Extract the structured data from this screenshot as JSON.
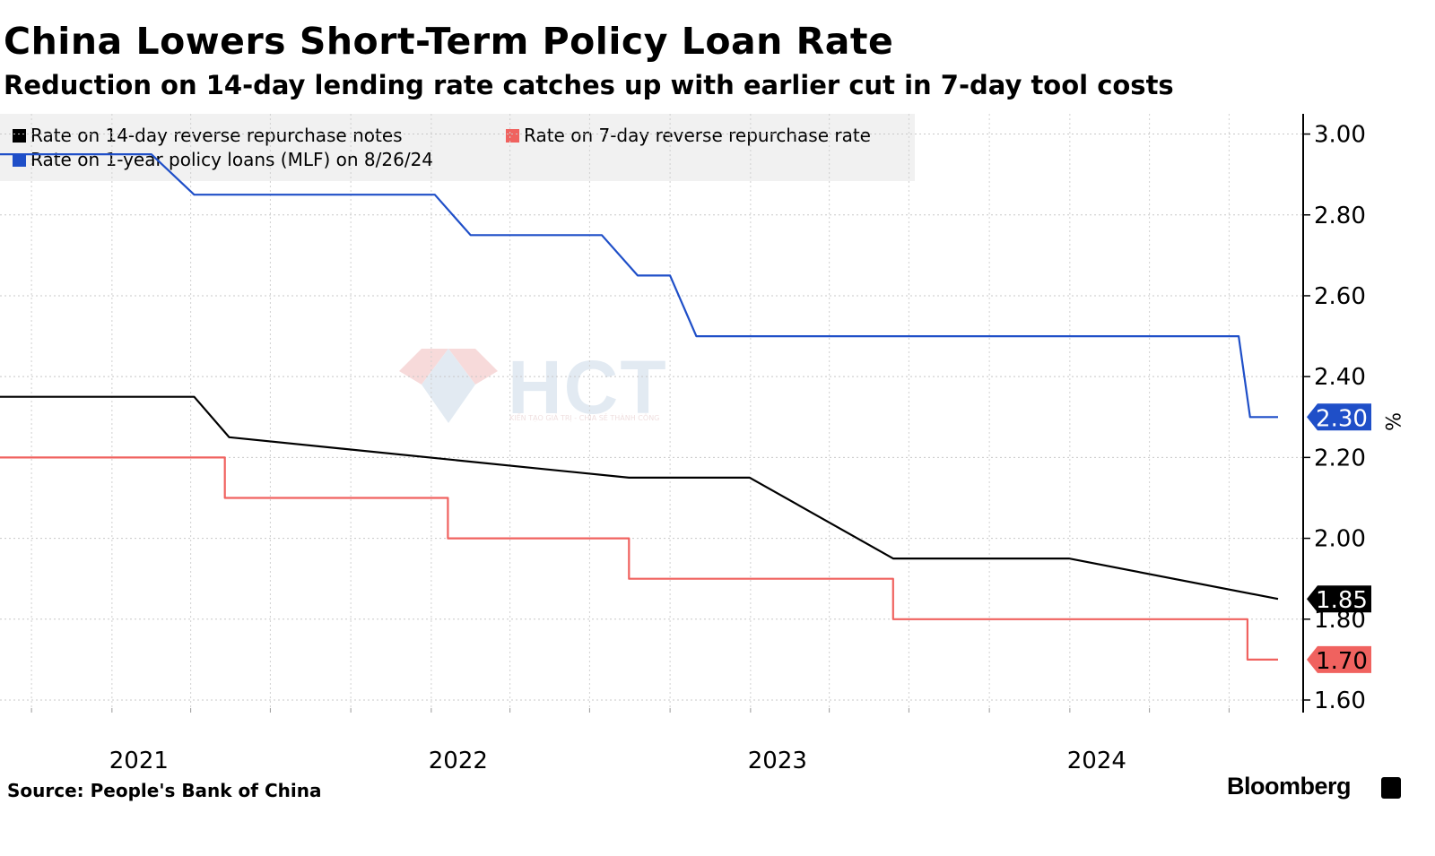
{
  "header": {
    "title": "China Lowers Short-Term Policy Loan Rate",
    "subtitle": "Reduction on 14-day lending rate catches up with earlier cut in 7-day tool costs"
  },
  "legend": [
    {
      "label": "Rate on 14-day reverse repurchase notes",
      "color": "#000000"
    },
    {
      "label": "Rate on 7-day reverse repurchase rate",
      "color": "#f0625f"
    },
    {
      "label": "Rate on 1-year policy loans (MLF) on 8/26/24",
      "color": "#1f4fc8"
    }
  ],
  "footer": {
    "source": "Source: People's Bank of China",
    "brand": "Bloomberg"
  },
  "watermark": {
    "text": "HCT",
    "tagline": "KIẾN TẠO GIÁ TRỊ - CHIA SẺ THÀNH CÔNG"
  },
  "chart_data": {
    "type": "line",
    "title": "China Lowers Short-Term Policy Loan Rate",
    "subtitle": "Reduction on 14-day lending rate catches up with earlier cut in 7-day tool costs",
    "ylabel": "%",
    "ylim": [
      1.58,
      3.05
    ],
    "y_ticks": [
      "3.00",
      "2.80",
      "2.60",
      "2.40",
      "2.20",
      "2.00",
      "1.80",
      "1.60"
    ],
    "y_tick_values": [
      3.0,
      2.8,
      2.6,
      2.4,
      2.2,
      2.0,
      1.8,
      1.6
    ],
    "x_ticks": [
      "2021",
      "2022",
      "2023",
      "2024"
    ],
    "x_tick_dates": [
      "2021-01-01",
      "2022-01-01",
      "2023-01-01",
      "2024-01-01"
    ],
    "xlim": [
      "2020-08-26",
      "2024-08-26"
    ],
    "grid": true,
    "legend_position": "top-left",
    "series": [
      {
        "name": "Rate on 14-day reverse repurchase notes",
        "color": "#000000",
        "end_label": "1.85",
        "points": [
          [
            "2020-08-26",
            2.35
          ],
          [
            "2021-04-05",
            2.35
          ],
          [
            "2021-05-15",
            2.25
          ],
          [
            "2022-08-15",
            2.15
          ],
          [
            "2022-12-31",
            2.15
          ],
          [
            "2023-06-13",
            1.95
          ],
          [
            "2023-12-31",
            1.95
          ],
          [
            "2024-08-26",
            1.85
          ]
        ]
      },
      {
        "name": "Rate on 7-day reverse repurchase rate",
        "color": "#f0625f",
        "end_label": "1.70",
        "points": [
          [
            "2020-08-26",
            2.2
          ],
          [
            "2021-05-10",
            2.2
          ],
          [
            "2021-05-10",
            2.1
          ],
          [
            "2022-01-20",
            2.1
          ],
          [
            "2022-01-20",
            2.0
          ],
          [
            "2022-08-15",
            2.0
          ],
          [
            "2022-08-15",
            1.9
          ],
          [
            "2023-06-13",
            1.9
          ],
          [
            "2023-06-13",
            1.8
          ],
          [
            "2024-07-22",
            1.8
          ],
          [
            "2024-07-22",
            1.7
          ],
          [
            "2024-08-26",
            1.7
          ]
        ]
      },
      {
        "name": "Rate on 1-year policy loans (MLF) on 8/26/24",
        "color": "#1f4fc8",
        "end_label": "2.30",
        "points": [
          [
            "2020-08-26",
            2.95
          ],
          [
            "2021-02-15",
            2.95
          ],
          [
            "2021-04-05",
            2.85
          ],
          [
            "2022-01-05",
            2.85
          ],
          [
            "2022-02-15",
            2.75
          ],
          [
            "2022-07-15",
            2.75
          ],
          [
            "2022-08-25",
            2.65
          ],
          [
            "2022-10-01",
            2.65
          ],
          [
            "2022-10-31",
            2.5
          ],
          [
            "2024-07-12",
            2.5
          ],
          [
            "2024-07-25",
            2.3
          ],
          [
            "2024-08-26",
            2.3
          ]
        ]
      }
    ]
  }
}
